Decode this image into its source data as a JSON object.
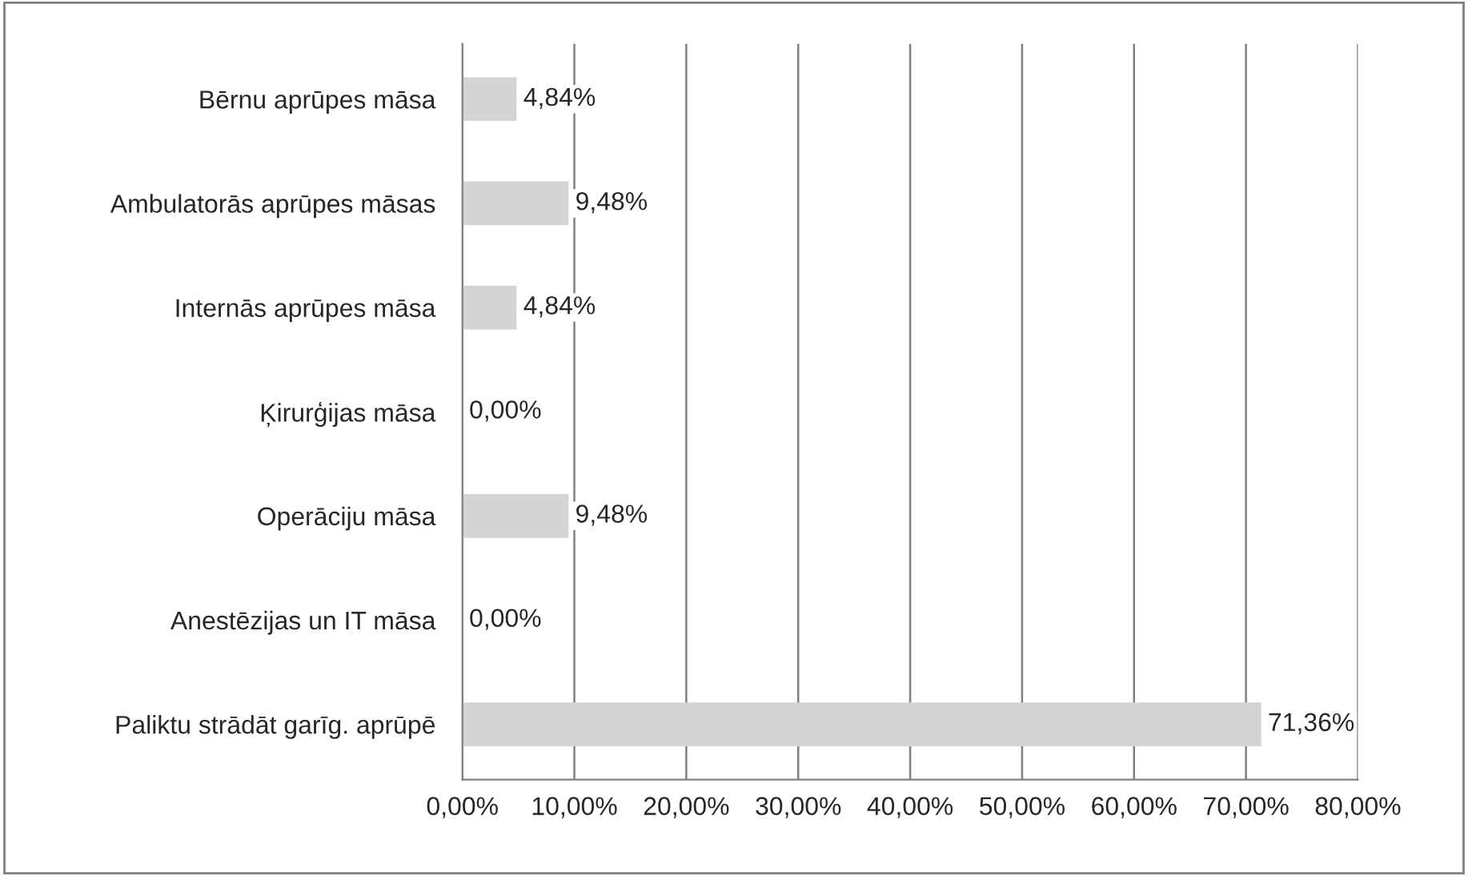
{
  "chart_data": {
    "type": "bar",
    "orientation": "horizontal",
    "categories": [
      "Bērnu aprūpes māsa",
      "Ambulatorās aprūpes māsas",
      "Internās aprūpes māsa",
      "Ķirurģijas māsa",
      "Operāciju māsa",
      "Anestēzijas un IT māsa",
      "Paliktu strādāt garīg. aprūpē"
    ],
    "values": [
      4.84,
      9.48,
      4.84,
      0,
      9.48,
      0,
      71.36
    ],
    "value_labels": [
      "4,84%",
      "9,48%",
      "4,84%",
      "0,00%",
      "9,48%",
      "0,00%",
      "71,36%"
    ],
    "color": "#d4d4d4",
    "xlim": [
      0,
      80
    ],
    "xticks": [
      {
        "value": 0,
        "label": "0,00%"
      },
      {
        "value": 10,
        "label": "10,00%"
      },
      {
        "value": 20,
        "label": "20,00%"
      },
      {
        "value": 30,
        "label": "30,00%"
      },
      {
        "value": 40,
        "label": "40,00%"
      },
      {
        "value": 50,
        "label": "50,00%"
      },
      {
        "value": 60,
        "label": "60,00%"
      },
      {
        "value": 70,
        "label": "70,00%"
      },
      {
        "value": 80,
        "label": "80,00%"
      }
    ],
    "grid": "x",
    "legend": false
  }
}
